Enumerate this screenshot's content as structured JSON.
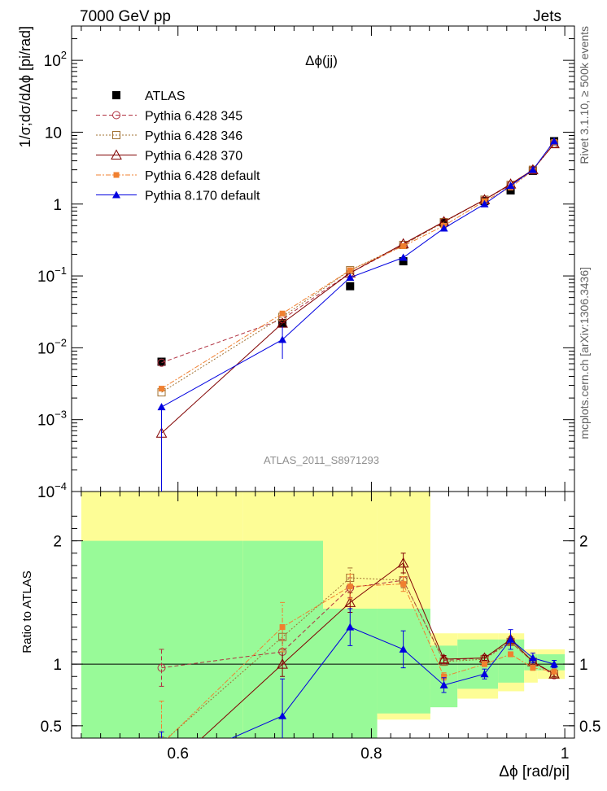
{
  "header": {
    "left": "7000 GeV pp",
    "right": "Jets"
  },
  "side_labels": {
    "rivet": "Rivet 3.1.10, ≥ 500k events",
    "mcplots": "mcplots.cern.ch [arXiv:1306.3436]"
  },
  "colors": {
    "atlas": "#000000",
    "p345": "#b03040",
    "p346": "#a07030",
    "p370": "#800000",
    "pdef": "#f08030",
    "p8": "#0000e0",
    "band_inner": "#98fa98",
    "band_outer": "#fdfd96"
  },
  "chart_data": [
    {
      "type": "line",
      "title": "Δϕ(jj)",
      "ylabel": "1/σ;dσ/dΔϕ [pi/rad]",
      "watermark": "ATLAS_2011_S8971293",
      "yscale": "log",
      "ylim": [
        0.0001,
        300
      ],
      "xlim": [
        0.49,
        1.01
      ],
      "y_ticks": [
        {
          "mant": "10",
          "exp": "2",
          "value": 100
        },
        {
          "mant": "10",
          "exp": "",
          "value": 10
        },
        {
          "mant": "1",
          "exp": "",
          "value": 1
        },
        {
          "mant": "10",
          "exp": "−1",
          "value": 0.1
        },
        {
          "mant": "10",
          "exp": "−2",
          "value": 0.01
        },
        {
          "mant": "10",
          "exp": "−3",
          "value": 0.001
        },
        {
          "mant": "10",
          "exp": "−4",
          "value": 0.0001
        }
      ],
      "legend_position": "top-left",
      "x": [
        0.583,
        0.708,
        0.778,
        0.833,
        0.875,
        0.917,
        0.944,
        0.967,
        0.989
      ],
      "series": [
        {
          "name": "ATLAS",
          "key": "atlas",
          "marker": "square-filled",
          "dash": "",
          "values": [
            0.0064,
            0.022,
            0.072,
            0.16,
            0.55,
            1.1,
            1.55,
            2.9,
            7.5
          ]
        },
        {
          "name": "Pythia 6.428 345",
          "key": "p345",
          "marker": "circle-open",
          "dash": "5,3",
          "values": [
            0.0062,
            0.025,
            0.11,
            0.27,
            0.57,
            1.15,
            1.85,
            3.0,
            6.9
          ]
        },
        {
          "name": "Pythia 6.428 346",
          "key": "p346",
          "marker": "square-open",
          "dash": "2,2",
          "values": [
            0.0024,
            0.027,
            0.12,
            0.27,
            0.56,
            1.15,
            1.85,
            3.0,
            6.9
          ]
        },
        {
          "name": "Pythia 6.428 370",
          "key": "p370",
          "marker": "triangle-open",
          "dash": "",
          "values": [
            0.00065,
            0.022,
            0.11,
            0.28,
            0.57,
            1.15,
            1.9,
            3.0,
            6.9
          ]
        },
        {
          "name": "Pythia 6.428 default",
          "key": "pdef",
          "marker": "square-filled-small",
          "dash": "6,2,2,2",
          "values": [
            0.0027,
            0.03,
            0.12,
            0.26,
            0.5,
            1.1,
            1.7,
            2.95,
            7.3
          ]
        },
        {
          "name": "Pythia 8.170 default",
          "key": "p8",
          "marker": "triangle-filled",
          "dash": "",
          "values": [
            0.0015,
            0.013,
            0.095,
            0.18,
            0.46,
            1.0,
            1.8,
            3.0,
            7.5
          ]
        }
      ]
    },
    {
      "type": "line",
      "xlabel": "Δϕ [rad/pi]",
      "ylabel": "Ratio to ATLAS",
      "xlim": [
        0.49,
        1.01
      ],
      "ylim": [
        0.4,
        2.4
      ],
      "x_ticks": [
        0.6,
        0.8,
        1.0
      ],
      "x_tick_labels": [
        "0.6",
        "0.8",
        "1"
      ],
      "y_ticks": [
        0.5,
        1,
        2
      ],
      "y_tick_labels": [
        "0.5",
        "1",
        "2"
      ],
      "x": [
        0.583,
        0.708,
        0.778,
        0.833,
        0.875,
        0.917,
        0.944,
        0.967,
        0.989
      ],
      "bands": {
        "edges": [
          0.5,
          0.667,
          0.75,
          0.806,
          0.861,
          0.889,
          0.931,
          0.958,
          0.972,
          1.0
        ],
        "inner_lo": [
          0.0,
          0.0,
          0.0,
          0.6,
          0.65,
          0.8,
          0.85,
          0.95,
          0.95
        ],
        "inner_hi": [
          2.0,
          2.0,
          1.45,
          1.45,
          1.15,
          1.2,
          1.2,
          1.08,
          1.08
        ],
        "outer_lo": [
          0.0,
          0.0,
          0.45,
          0.55,
          0.8,
          0.72,
          0.78,
          0.85,
          0.88
        ],
        "outer_hi": [
          2.4,
          2.4,
          2.4,
          2.4,
          1.25,
          1.25,
          1.25,
          1.12,
          1.12
        ]
      },
      "series": [
        {
          "name": "Pythia 6.428 345",
          "key": "p345",
          "marker": "circle-open",
          "dash": "5,3",
          "values": [
            0.97,
            1.1,
            1.62,
            1.68,
            1.03,
            1.05,
            1.18,
            1.02,
            0.91
          ],
          "err": [
            0.15,
            0.1,
            0.08,
            0.06,
            0.03,
            0.02,
            0.02,
            0.02,
            0.02
          ]
        },
        {
          "name": "Pythia 6.428 346",
          "key": "p346",
          "marker": "square-open",
          "dash": "2,2",
          "values": [
            0.36,
            1.22,
            1.7,
            1.68,
            1.02,
            1.04,
            1.18,
            1.02,
            0.92
          ],
          "err": [
            0.05,
            0.1,
            0.08,
            0.06,
            0.03,
            0.02,
            0.02,
            0.02,
            0.02
          ]
        },
        {
          "name": "Pythia 6.428 370",
          "key": "p370",
          "marker": "triangle-open",
          "dash": "",
          "values": [
            0.1,
            1.0,
            1.5,
            1.82,
            1.04,
            1.05,
            1.2,
            1.02,
            0.92
          ],
          "err": [
            0.05,
            0.1,
            0.08,
            0.08,
            0.03,
            0.02,
            0.02,
            0.02,
            0.02
          ]
        },
        {
          "name": "Pythia 6.428 default",
          "key": "pdef",
          "marker": "square-filled-small",
          "dash": "6,2,2,2",
          "values": [
            0.35,
            1.3,
            1.63,
            1.65,
            0.9,
            1.0,
            1.08,
            0.97,
            0.94
          ],
          "err": [
            0.35,
            0.2,
            0.1,
            0.06,
            0.03,
            0.02,
            0.02,
            0.02,
            0.02
          ]
        },
        {
          "name": "Pythia 8.170 default",
          "key": "p8",
          "marker": "triangle-filled",
          "dash": "",
          "values": [
            0.15,
            0.58,
            1.3,
            1.12,
            0.83,
            0.92,
            1.2,
            1.05,
            1.0
          ],
          "err": [
            0.3,
            0.3,
            0.15,
            0.15,
            0.06,
            0.04,
            0.08,
            0.04,
            0.03
          ]
        }
      ]
    }
  ]
}
